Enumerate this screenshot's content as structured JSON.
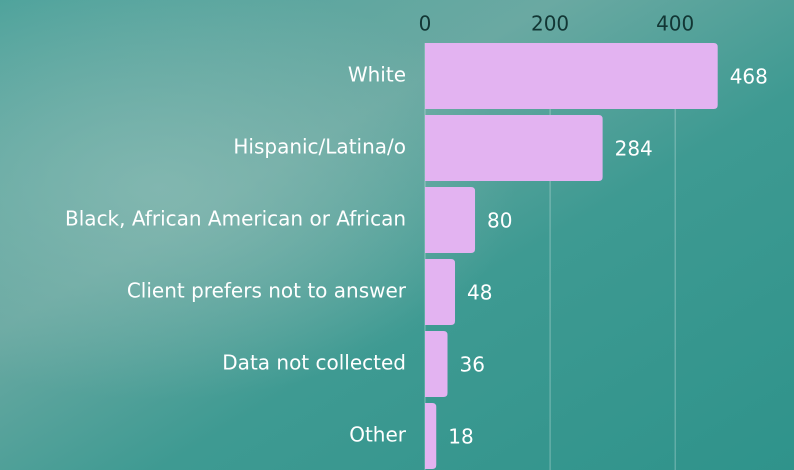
{
  "chart_data": {
    "type": "bar",
    "orientation": "horizontal",
    "categories": [
      "White",
      "Hispanic/Latina/o",
      "Black, African American or African",
      "Client prefers not to answer",
      "Data not collected",
      "Other"
    ],
    "values": [
      468,
      284,
      80,
      48,
      36,
      18
    ],
    "color": "#e3b3f1",
    "xlim": [
      0,
      590
    ],
    "xticks": [
      0,
      200,
      400
    ],
    "grid": true
  }
}
